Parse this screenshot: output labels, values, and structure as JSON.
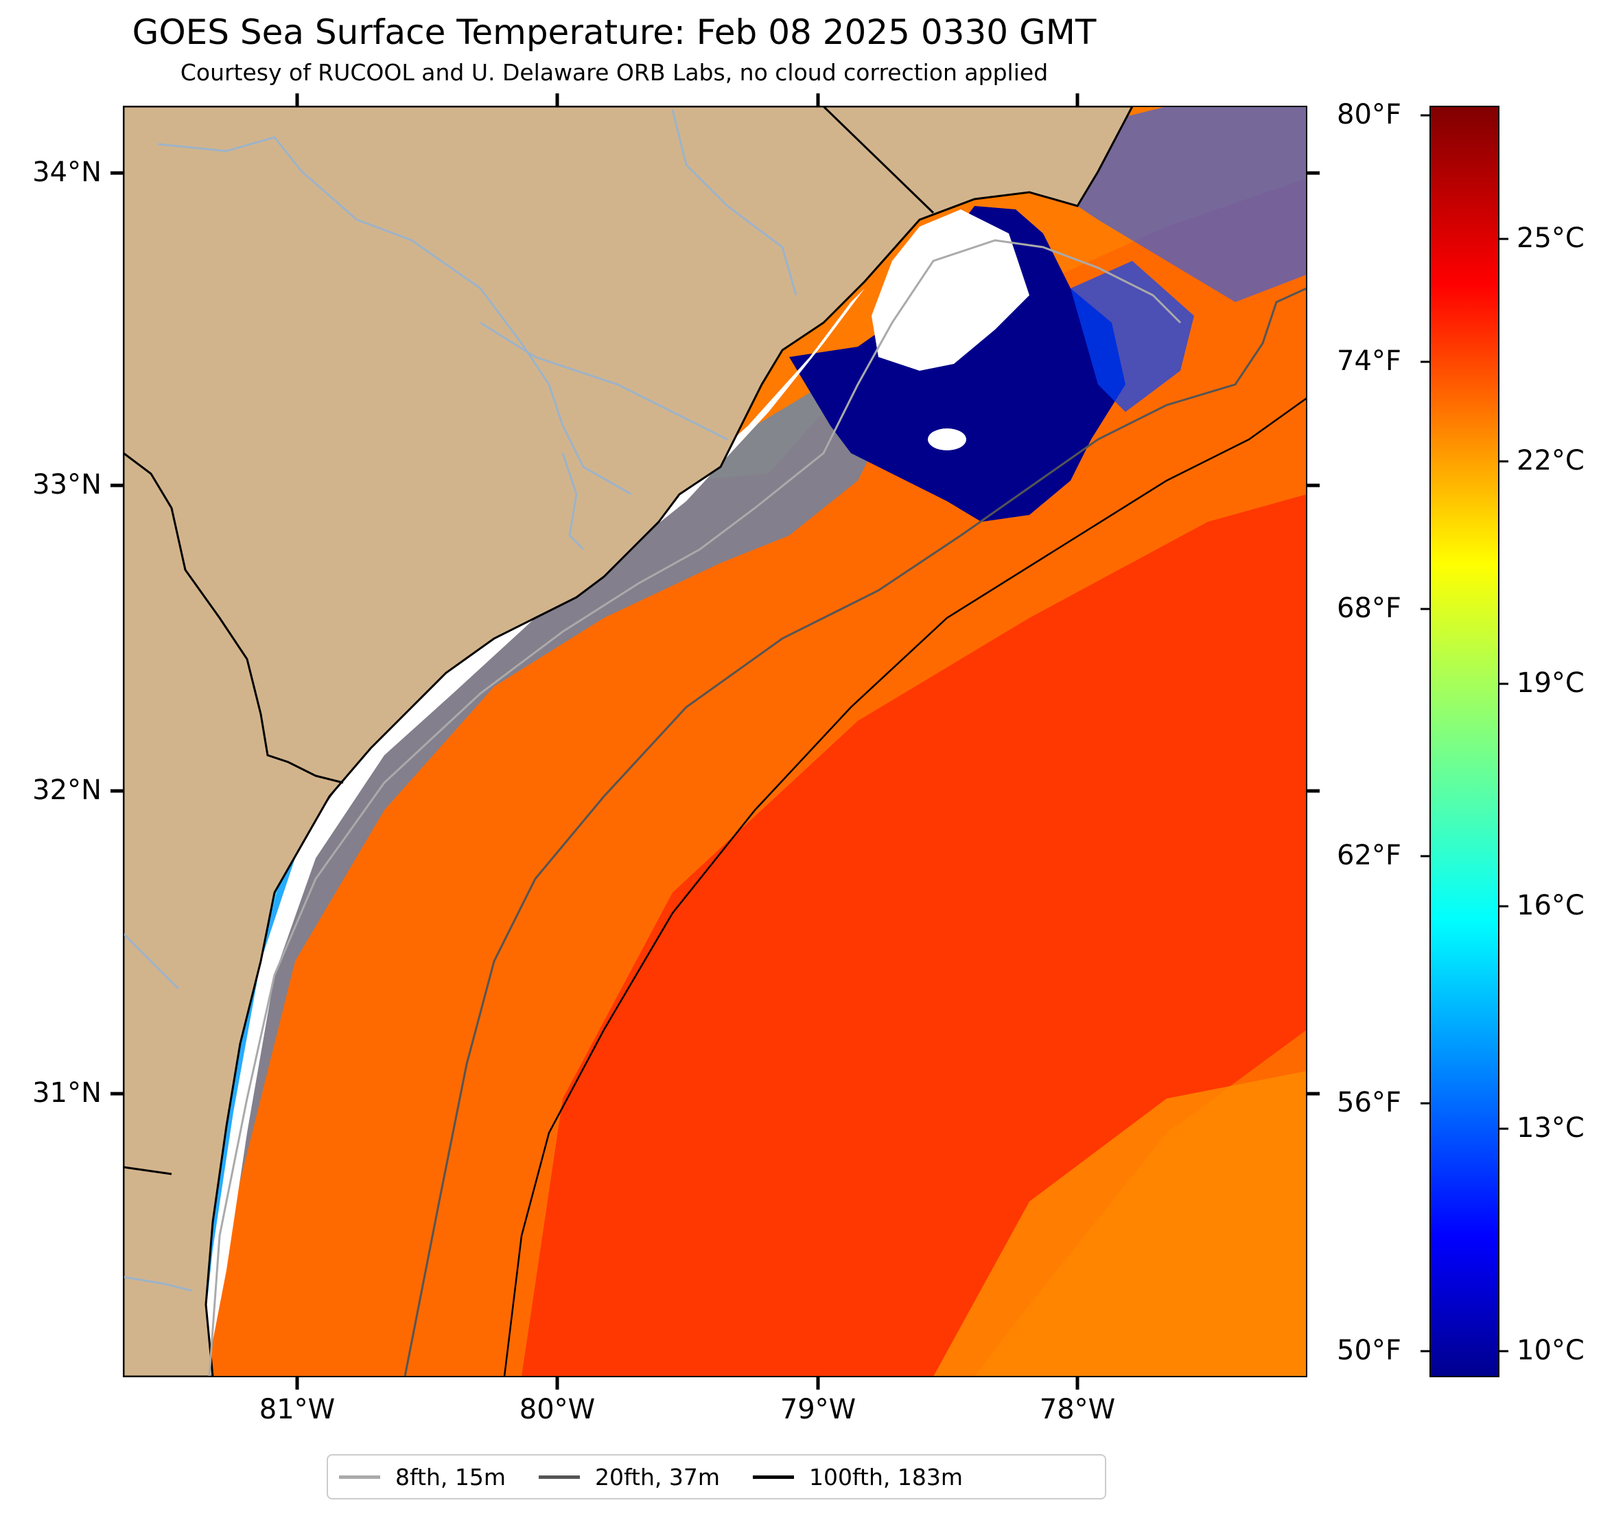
{
  "title": "GOES Sea Surface Temperature: Feb 08 2025 0330 GMT",
  "subtitle": "Courtesy of RUCOOL and U. Delaware ORB Labs, no cloud correction applied",
  "map": {
    "lat_ticks": [
      "34°N",
      "33°N",
      "32°N",
      "31°N"
    ],
    "lon_ticks": [
      "81°W",
      "80°W",
      "79°W",
      "78°W"
    ],
    "colors": {
      "land": "#d2b48c",
      "river": "#9db3c8",
      "cloud": "#ffffff"
    }
  },
  "colorbar": {
    "fahrenheit_labels": [
      "80°F",
      "74°F",
      "68°F",
      "62°F",
      "56°F",
      "50°F"
    ],
    "celsius_labels": [
      "25°C",
      "22°C",
      "19°C",
      "16°C",
      "13°C",
      "10°C"
    ],
    "colormap": "jet"
  },
  "legend": {
    "items": [
      {
        "label": "8fth, 15m",
        "color": "#aaaaaa"
      },
      {
        "label": "20fth, 37m",
        "color": "#555555"
      },
      {
        "label": "100fth, 183m",
        "color": "#000000"
      }
    ]
  }
}
